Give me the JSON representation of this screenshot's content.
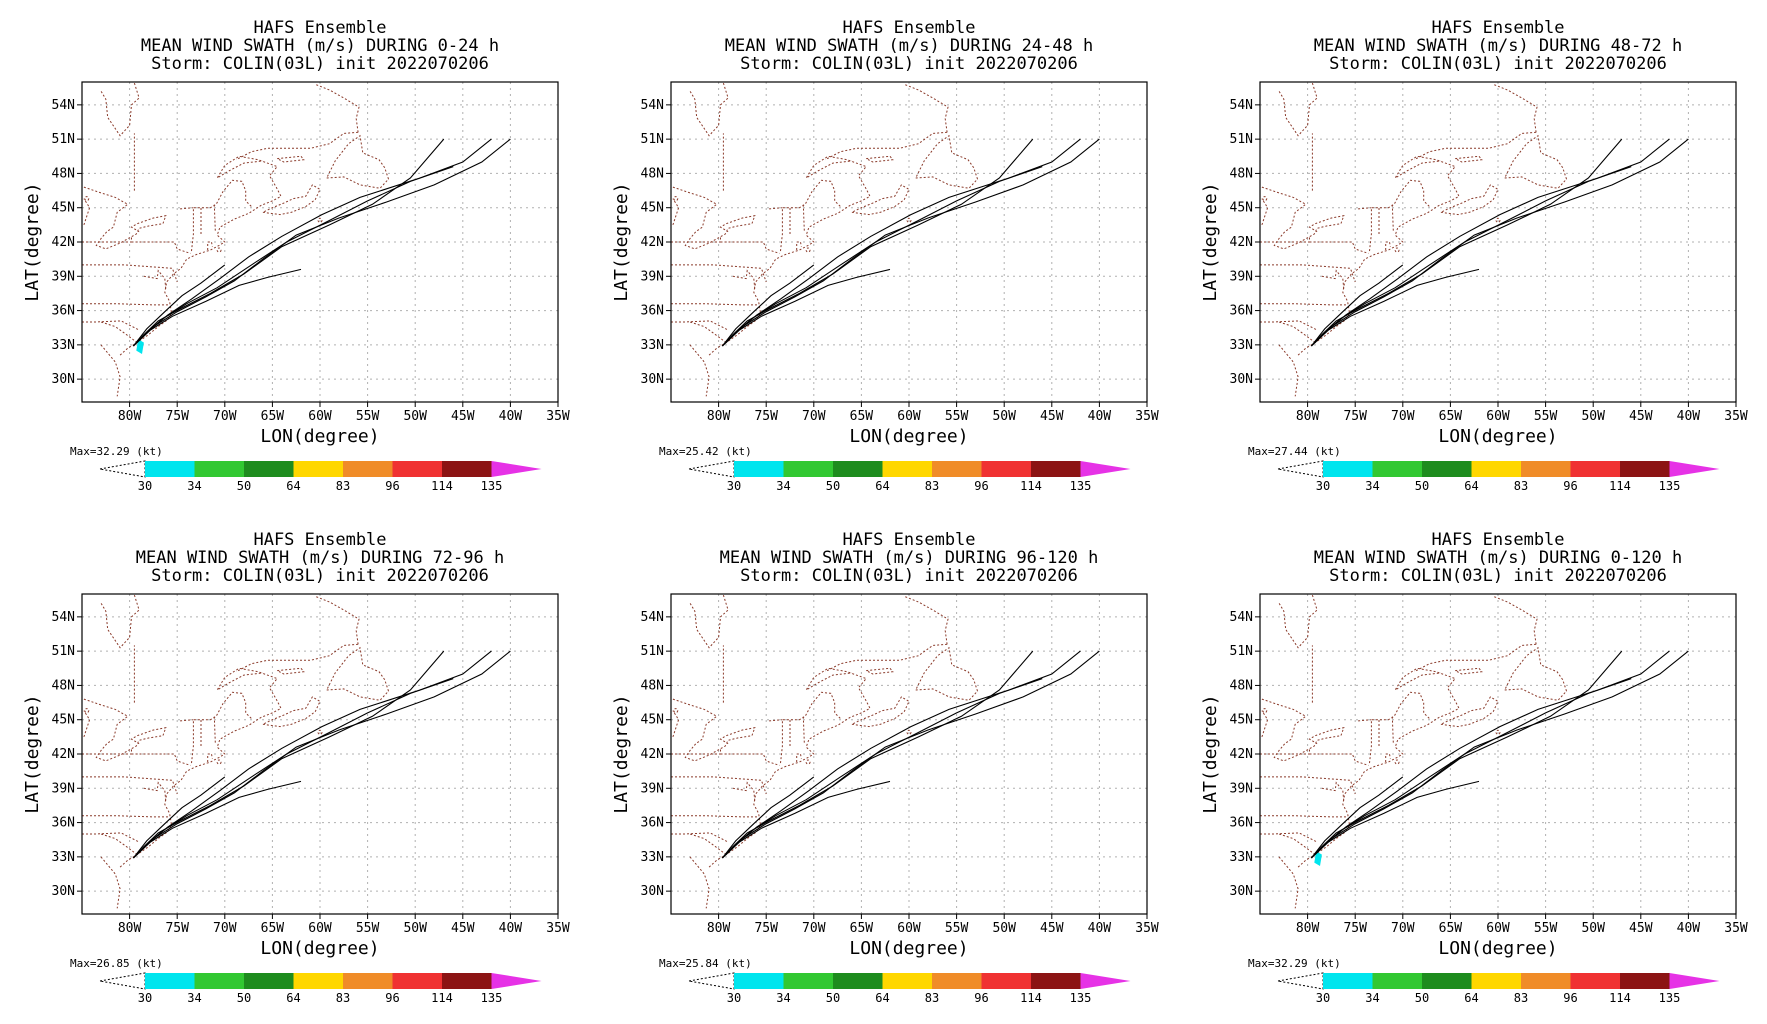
{
  "colors": {
    "coast": "#8a3a2a",
    "track": "#000000",
    "swath": "#00e5ee",
    "colorbar": [
      "#00e5ee",
      "#32c832",
      "#1e8c1e",
      "#ffd700",
      "#f08c28",
      "#f03232",
      "#8c1414",
      "#e632e6"
    ]
  },
  "common": {
    "title_line1": "HAFS Ensemble",
    "title_line3": "Storm: COLIN(03L) init 2022070206",
    "xlabel": "LON(degree)",
    "ylabel": "LAT(degree)",
    "lat_ticks": [
      "54N",
      "51N",
      "48N",
      "45N",
      "42N",
      "39N",
      "36N",
      "33N",
      "30N"
    ],
    "lon_ticks": [
      "80W",
      "75W",
      "70W",
      "65W",
      "60W",
      "55W",
      "50W",
      "45W",
      "40W",
      "35W"
    ],
    "colorbar_levels": [
      "30",
      "34",
      "50",
      "64",
      "83",
      "96",
      "114",
      "135"
    ]
  },
  "panels": [
    {
      "title_line2": "MEAN WIND SWATH (m/s) DURING  0-24 h",
      "max_label": "Max=32.29 (kt)",
      "swath": true
    },
    {
      "title_line2": "MEAN WIND SWATH (m/s) DURING 24-48 h",
      "max_label": "Max=25.42 (kt)",
      "swath": false
    },
    {
      "title_line2": "MEAN WIND SWATH (m/s) DURING 48-72 h",
      "max_label": "Max=27.44 (kt)",
      "swath": false
    },
    {
      "title_line2": "MEAN WIND SWATH (m/s) DURING 72-96 h",
      "max_label": "Max=26.85 (kt)",
      "swath": false
    },
    {
      "title_line2": "MEAN WIND SWATH (m/s) DURING 96-120 h",
      "max_label": "Max=25.84 (kt)",
      "swath": false
    },
    {
      "title_line2": "MEAN WIND SWATH (m/s) DURING 0-120 h",
      "max_label": "Max=32.29 (kt)",
      "swath": true
    }
  ],
  "chart_data": {
    "type": "map",
    "x_range_deg_lon": [
      -85,
      -35
    ],
    "y_range_deg_lat": [
      28,
      56
    ],
    "grid": true,
    "colorbar_placement": "bottom",
    "ensemble_tracks_lonlat": [
      [
        [
          -79.6,
          32.9
        ],
        [
          -78.5,
          33.9
        ],
        [
          -77.0,
          35.1
        ],
        [
          -74.8,
          36.1
        ],
        [
          -71.5,
          37.5
        ],
        [
          -68.0,
          39.2
        ],
        [
          -64.0,
          41.6
        ],
        [
          -59.0,
          43.5
        ],
        [
          -54.5,
          45.3
        ],
        [
          -50.5,
          47.6
        ],
        [
          -47.0,
          51.0
        ]
      ],
      [
        [
          -79.6,
          32.9
        ],
        [
          -78.3,
          34.0
        ],
        [
          -76.5,
          35.3
        ],
        [
          -74.0,
          36.6
        ],
        [
          -70.8,
          38.0
        ],
        [
          -67.2,
          40.0
        ],
        [
          -63.5,
          42.0
        ],
        [
          -59.2,
          43.8
        ],
        [
          -55.0,
          45.6
        ],
        [
          -50.5,
          47.3
        ],
        [
          -46.0,
          48.6
        ]
      ],
      [
        [
          -79.6,
          32.9
        ],
        [
          -78.0,
          34.2
        ],
        [
          -76.0,
          35.6
        ],
        [
          -73.5,
          37.0
        ],
        [
          -70.5,
          38.8
        ],
        [
          -67.5,
          40.7
        ],
        [
          -64.0,
          42.5
        ],
        [
          -59.8,
          44.4
        ],
        [
          -55.8,
          45.9
        ],
        [
          -49.5,
          47.6
        ],
        [
          -45.0,
          49.0
        ],
        [
          -42.0,
          51.0
        ]
      ],
      [
        [
          -79.6,
          32.9
        ],
        [
          -78.2,
          34.4
        ],
        [
          -76.3,
          35.9
        ],
        [
          -74.5,
          37.3
        ],
        [
          -72.5,
          38.4
        ],
        [
          -70.0,
          40.0
        ]
      ],
      [
        [
          -79.6,
          32.9
        ],
        [
          -77.8,
          34.3
        ],
        [
          -75.5,
          35.5
        ],
        [
          -72.0,
          36.8
        ],
        [
          -68.5,
          38.2
        ],
        [
          -65.5,
          38.9
        ],
        [
          -62.0,
          39.6
        ]
      ],
      [
        [
          -79.6,
          32.9
        ],
        [
          -77.5,
          34.6
        ],
        [
          -75.0,
          35.9
        ],
        [
          -72.0,
          37.2
        ],
        [
          -69.0,
          38.6
        ],
        [
          -66.0,
          40.5
        ],
        [
          -62.5,
          42.6
        ],
        [
          -58.0,
          44.1
        ],
        [
          -53.0,
          45.5
        ],
        [
          -48.0,
          47.0
        ],
        [
          -43.0,
          49.0
        ],
        [
          -40.0,
          51.0
        ]
      ]
    ],
    "swath_lonlat": [
      [
        -79.1,
        33.5
      ],
      [
        -78.5,
        33.2
      ],
      [
        -78.7,
        32.2
      ],
      [
        -79.3,
        32.5
      ]
    ]
  }
}
